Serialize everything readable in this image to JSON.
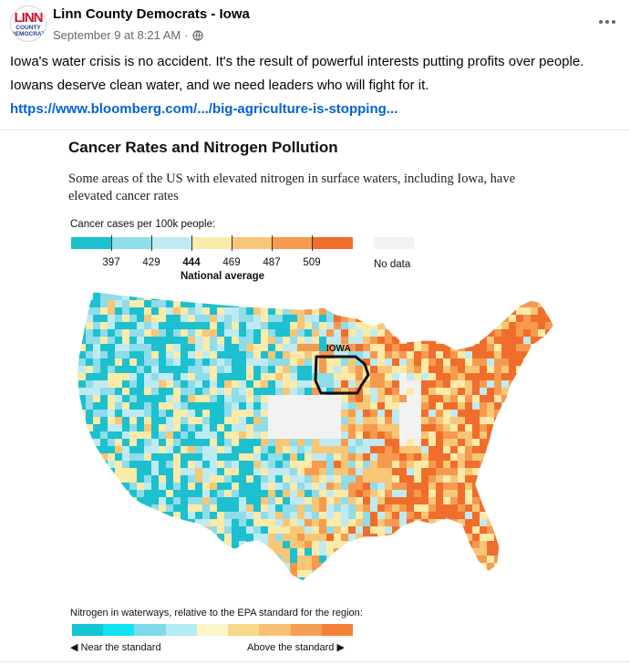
{
  "post": {
    "avatar": {
      "line1": "LINN",
      "line2": "COUNTY\nDEMOCRATS"
    },
    "page_name": "Linn County Democrats - Iowa",
    "timestamp": "September 9 at 8:21 AM",
    "separator": "·",
    "text_line1": "Iowa's water crisis is no accident. It's the result of powerful interests putting profits over people.",
    "text_line2": "Iowans deserve clean water, and we need leaders who will fight for it.",
    "link": "https://www.bloomberg.com/.../big-agriculture-is-stopping..."
  },
  "figure": {
    "title": "Cancer Rates and Nitrogen Pollution",
    "subtitle": "Some areas of the US with elevated nitrogen in surface waters, including Iowa, have elevated cancer rates",
    "map_label": "IOWA",
    "legend_cancer": {
      "title": "Cancer cases per 100k people:",
      "ticks": [
        "397",
        "429",
        "444",
        "469",
        "487",
        "509"
      ],
      "highlighted_tick": "444",
      "national_avg_label": "National average",
      "no_data_label": "No data",
      "colors": [
        "#1cc0cf",
        "#8fdcea",
        "#bfeaf1",
        "#fbeaa8",
        "#f7c676",
        "#f59a4e",
        "#f06d2b"
      ]
    },
    "legend_nitrogen": {
      "title": "Nitrogen in waterways, relative to the EPA standard for the region:",
      "left_label": "◀ Near the standard",
      "right_label": "Above the standard ▶",
      "colors": [
        "#15c4d3",
        "#12e3f2",
        "#7fdaea",
        "#b3edf5",
        "#fdf5c9",
        "#f8d98c",
        "#f7c070",
        "#f59e55",
        "#f58038"
      ]
    },
    "colors": {
      "no_data": "#f2f2f2",
      "link": "#0064d1"
    }
  }
}
